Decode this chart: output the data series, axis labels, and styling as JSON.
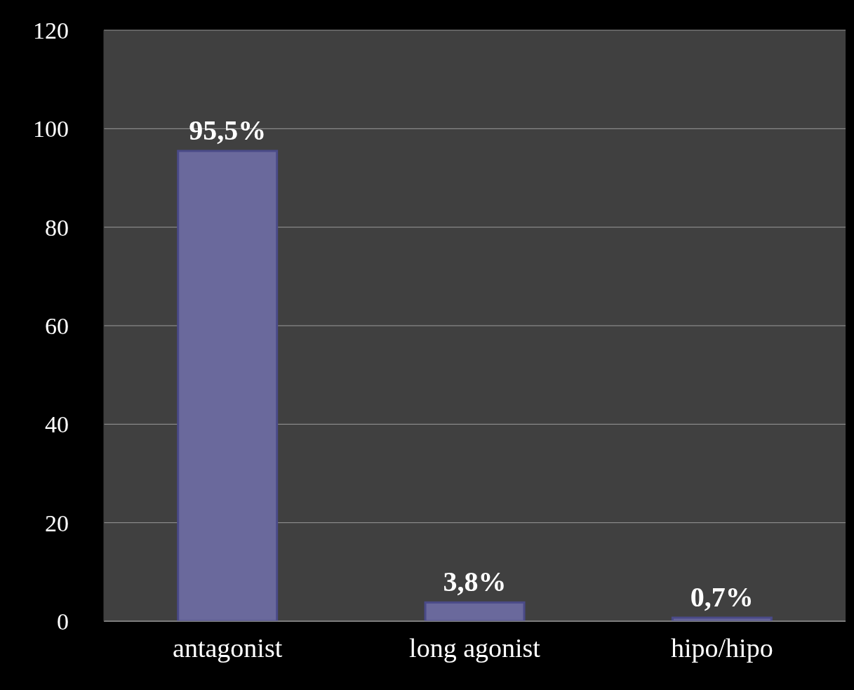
{
  "chart_data": {
    "type": "bar",
    "categories": [
      "antagonist",
      "long agonist",
      "hipo/hipo"
    ],
    "values": [
      95.5,
      3.8,
      0.7
    ],
    "value_labels": [
      "95,5%",
      "3,8%",
      "0,7%"
    ],
    "color": "#6a699c",
    "ylim": [
      0,
      120
    ],
    "yticks": [
      0,
      20,
      40,
      60,
      80,
      100,
      120
    ],
    "grid": "y"
  }
}
